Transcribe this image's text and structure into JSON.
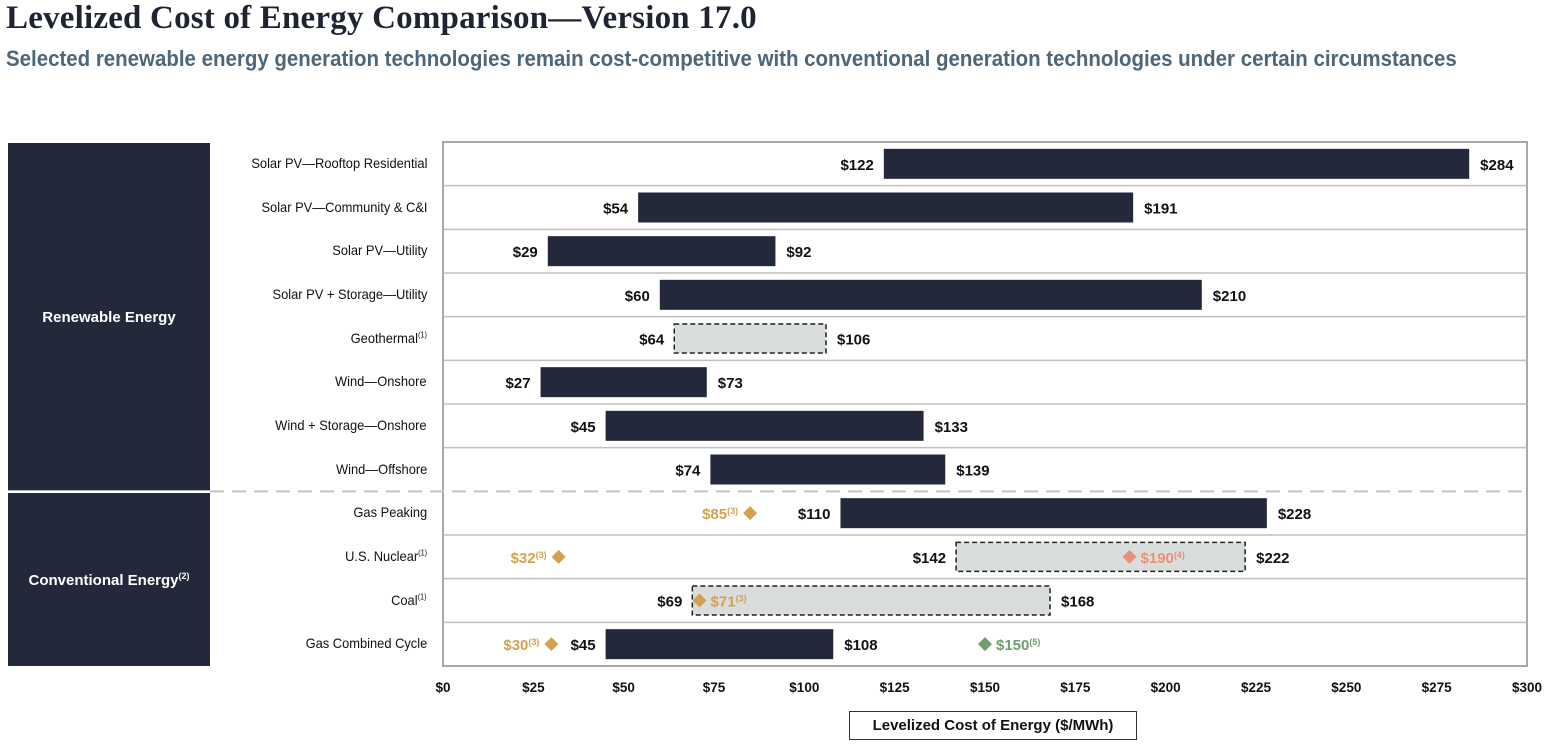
{
  "header": {
    "title": "Levelized Cost of Energy Comparison—Version 17.0",
    "subtitle": "Selected renewable energy generation technologies remain cost-competitive with conventional generation technologies under certain circumstances"
  },
  "groups": [
    {
      "label": "Renewable Energy",
      "sup": ""
    },
    {
      "label": "Conventional Energy",
      "sup": "(2)"
    }
  ],
  "colors": {
    "bar": "#23293b",
    "dashed_fill": "#d9dedd",
    "gold_marker": "#d4a14e",
    "salmon_marker": "#ec8f7a",
    "green_marker": "#6e9e6e",
    "group_bg": "#23293b",
    "grid": "#bfbfbf"
  },
  "chart_data": {
    "type": "bar",
    "orientation": "horizontal-range",
    "title": "Levelized Cost of Energy Comparison—Version 17.0",
    "xlabel": "Levelized Cost of Energy ($/MWh)",
    "xlim": [
      0,
      300
    ],
    "xticks": [
      0,
      25,
      50,
      75,
      100,
      125,
      150,
      175,
      200,
      225,
      250,
      275,
      300
    ],
    "xtick_labels": [
      "$0",
      "$25",
      "$50",
      "$75",
      "$100",
      "$125",
      "$150",
      "$175",
      "$200",
      "$225",
      "$250",
      "$275",
      "$300"
    ],
    "categories": [
      {
        "label": "Solar PV—Rooftop Residential",
        "sup": "",
        "group": "Renewable Energy",
        "low": 122,
        "high": 284,
        "style": "solid",
        "low_label": "$122",
        "high_label": "$284"
      },
      {
        "label": "Solar PV—Community & C&I",
        "sup": "",
        "group": "Renewable Energy",
        "low": 54,
        "high": 191,
        "style": "solid",
        "low_label": "$54",
        "high_label": "$191"
      },
      {
        "label": "Solar PV—Utility",
        "sup": "",
        "group": "Renewable Energy",
        "low": 29,
        "high": 92,
        "style": "solid",
        "low_label": "$29",
        "high_label": "$92"
      },
      {
        "label": "Solar PV + Storage—Utility",
        "sup": "",
        "group": "Renewable Energy",
        "low": 60,
        "high": 210,
        "style": "solid",
        "low_label": "$60",
        "high_label": "$210"
      },
      {
        "label": "Geothermal",
        "sup": "(1)",
        "group": "Renewable Energy",
        "low": 64,
        "high": 106,
        "style": "dashed",
        "low_label": "$64",
        "high_label": "$106"
      },
      {
        "label": "Wind—Onshore",
        "sup": "",
        "group": "Renewable Energy",
        "low": 27,
        "high": 73,
        "style": "solid",
        "low_label": "$27",
        "high_label": "$73"
      },
      {
        "label": "Wind + Storage—Onshore",
        "sup": "",
        "group": "Renewable Energy",
        "low": 45,
        "high": 133,
        "style": "solid",
        "low_label": "$45",
        "high_label": "$133"
      },
      {
        "label": "Wind—Offshore",
        "sup": "",
        "group": "Renewable Energy",
        "low": 74,
        "high": 139,
        "style": "solid",
        "low_label": "$74",
        "high_label": "$139"
      },
      {
        "label": "Gas Peaking",
        "sup": "",
        "group": "Conventional Energy",
        "low": 110,
        "high": 228,
        "style": "solid",
        "low_label": "$110",
        "high_label": "$228"
      },
      {
        "label": "U.S. Nuclear",
        "sup": "(1)",
        "group": "Conventional Energy",
        "low": 142,
        "high": 222,
        "style": "dashed",
        "low_label": "$142",
        "high_label": "$222"
      },
      {
        "label": "Coal",
        "sup": "(1)",
        "group": "Conventional Energy",
        "low": 69,
        "high": 168,
        "style": "dashed",
        "low_label": "$69",
        "high_label": "$168"
      },
      {
        "label": "Gas Combined Cycle",
        "sup": "",
        "group": "Conventional Energy",
        "low": 45,
        "high": 108,
        "style": "solid",
        "low_label": "$45",
        "high_label": "$108"
      }
    ],
    "markers": [
      {
        "row": 8,
        "value": 85,
        "label": "$85",
        "sup": "(3)",
        "color": "gold",
        "label_side": "left"
      },
      {
        "row": 9,
        "value": 32,
        "label": "$32",
        "sup": "(3)",
        "color": "gold",
        "label_side": "left"
      },
      {
        "row": 9,
        "value": 190,
        "label": "$190",
        "sup": "(4)",
        "color": "salmon",
        "label_side": "right"
      },
      {
        "row": 10,
        "value": 71,
        "label": "$71",
        "sup": "(3)",
        "color": "gold",
        "label_side": "right"
      },
      {
        "row": 11,
        "value": 30,
        "label": "$30",
        "sup": "(3)",
        "color": "gold",
        "label_side": "left"
      },
      {
        "row": 11,
        "value": 150,
        "label": "$150",
        "sup": "(5)",
        "color": "green",
        "label_side": "right"
      }
    ],
    "group_divider_after_row": 7,
    "grid": true,
    "legend": "none"
  }
}
